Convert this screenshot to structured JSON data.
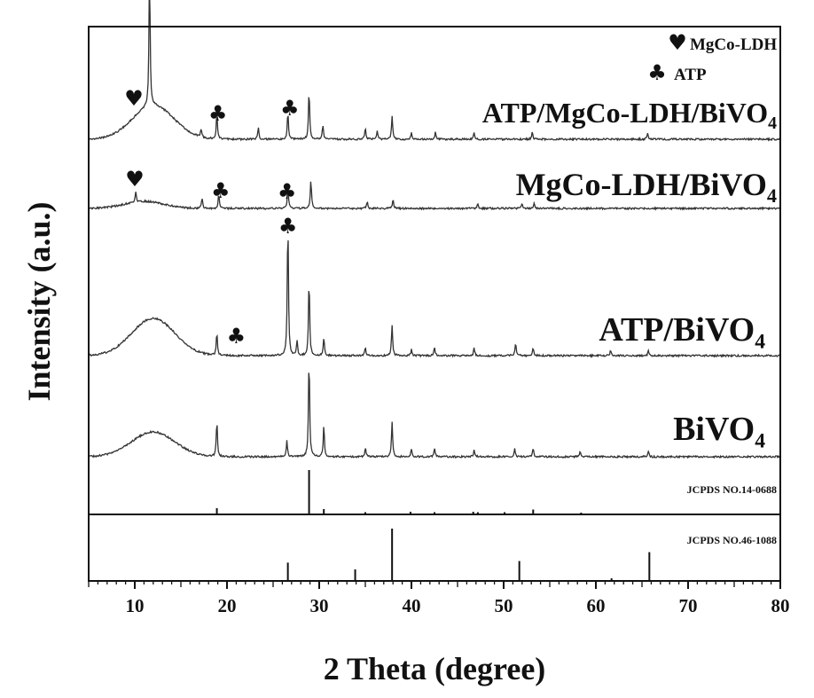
{
  "chart_data": {
    "type": "line",
    "title": "",
    "xlabel": "2 Theta (degree)",
    "ylabel": "Intensity (a.u.)",
    "xlim": [
      5,
      80
    ],
    "xticks": [
      10,
      20,
      30,
      40,
      50,
      60,
      70,
      80
    ],
    "legend": [
      {
        "symbol": "♥",
        "label": "MgCo-LDH"
      },
      {
        "symbol": "♣",
        "label": "ATP"
      }
    ],
    "series": [
      {
        "name": "ATP/MgCo-LDH/BiVO",
        "subscript": "4",
        "hump": {
          "center": 12,
          "height": 38,
          "width": 3.2
        },
        "peaks": [
          [
            11.6,
            150
          ],
          [
            17.2,
            10
          ],
          [
            18.9,
            28
          ],
          [
            23.4,
            14
          ],
          [
            26.6,
            30
          ],
          [
            28.9,
            55
          ],
          [
            30.4,
            16
          ],
          [
            35.0,
            12
          ],
          [
            36.3,
            10
          ],
          [
            37.9,
            26
          ],
          [
            40.0,
            8
          ],
          [
            42.6,
            8
          ],
          [
            46.8,
            8
          ],
          [
            53.1,
            8
          ],
          [
            65.6,
            7
          ]
        ],
        "markers": [
          {
            "symbol": "♥",
            "x": 9.9
          },
          {
            "symbol": "♣",
            "x": 19.0
          },
          {
            "symbol": "♣",
            "x": 26.8
          }
        ]
      },
      {
        "name": "MgCo-LDH/BiVO",
        "subscript": "4",
        "hump": {
          "center": 11,
          "height": 8,
          "width": 3
        },
        "peaks": [
          [
            10.1,
            12
          ],
          [
            17.3,
            12
          ],
          [
            19.1,
            16
          ],
          [
            26.6,
            24
          ],
          [
            29.1,
            32
          ],
          [
            35.2,
            8
          ],
          [
            38.0,
            10
          ],
          [
            47.2,
            6
          ],
          [
            52.0,
            6
          ],
          [
            53.3,
            6
          ]
        ],
        "markers": [
          {
            "symbol": "♥",
            "x": 10.0
          },
          {
            "symbol": "♣",
            "x": 19.3
          },
          {
            "symbol": "♣",
            "x": 26.5
          }
        ]
      },
      {
        "name": "ATP/BiVO",
        "subscript": "4",
        "hump": {
          "center": 12,
          "height": 42,
          "width": 3.3
        },
        "peaks": [
          [
            18.9,
            26
          ],
          [
            26.6,
            150
          ],
          [
            27.6,
            16
          ],
          [
            28.9,
            85
          ],
          [
            30.5,
            20
          ],
          [
            35.0,
            10
          ],
          [
            37.9,
            34
          ],
          [
            40.0,
            7
          ],
          [
            42.5,
            9
          ],
          [
            46.8,
            9
          ],
          [
            51.3,
            14
          ],
          [
            53.2,
            9
          ],
          [
            61.6,
            6
          ],
          [
            65.7,
            6
          ]
        ],
        "markers": [
          {
            "symbol": "♣",
            "x": 21.0
          },
          {
            "symbol": "♣",
            "x": 26.6
          }
        ]
      },
      {
        "name": "BiVO",
        "subscript": "4",
        "hump": {
          "center": 12,
          "height": 28,
          "width": 3.3
        },
        "peaks": [
          [
            18.9,
            40
          ],
          [
            26.5,
            18
          ],
          [
            28.9,
            110
          ],
          [
            30.5,
            35
          ],
          [
            35.0,
            10
          ],
          [
            37.9,
            40
          ],
          [
            40.0,
            9
          ],
          [
            42.5,
            10
          ],
          [
            46.8,
            8
          ],
          [
            51.2,
            10
          ],
          [
            53.2,
            9
          ],
          [
            58.3,
            6
          ],
          [
            65.7,
            6
          ]
        ],
        "markers": []
      }
    ],
    "references": [
      {
        "label": "JCPDS NO.14-0688",
        "lines": [
          [
            18.9,
            14
          ],
          [
            28.9,
            100
          ],
          [
            30.5,
            12
          ],
          [
            35.0,
            5
          ],
          [
            39.9,
            6
          ],
          [
            42.5,
            5
          ],
          [
            46.7,
            6
          ],
          [
            47.2,
            5
          ],
          [
            50.1,
            5
          ],
          [
            53.2,
            11
          ],
          [
            58.4,
            4
          ]
        ]
      },
      {
        "label": "JCPDS NO.46-1088",
        "lines": [
          [
            26.6,
            35
          ],
          [
            33.9,
            22
          ],
          [
            37.9,
            100
          ],
          [
            51.7,
            38
          ],
          [
            61.7,
            5
          ],
          [
            65.8,
            55
          ]
        ]
      }
    ]
  }
}
